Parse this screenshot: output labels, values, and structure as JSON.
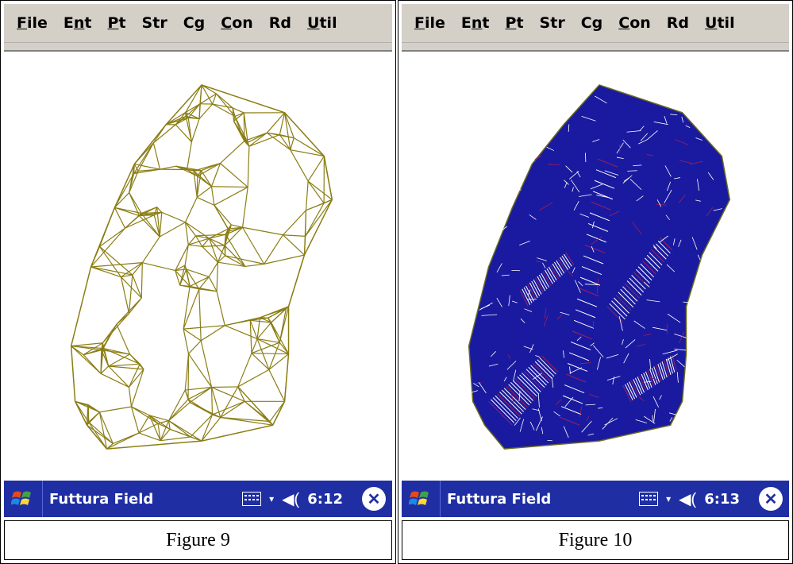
{
  "panels": [
    {
      "menu": [
        {
          "pre": "",
          "ul": "F",
          "post": "ile"
        },
        {
          "pre": "E",
          "ul": "n",
          "post": "t"
        },
        {
          "pre": "",
          "ul": "P",
          "post": "t"
        },
        {
          "pre": "Str",
          "ul": "",
          "post": ""
        },
        {
          "pre": "C",
          "ul": "g",
          "post": ""
        },
        {
          "pre": "",
          "ul": "C",
          "post": "on"
        },
        {
          "pre": "Rd",
          "ul": "",
          "post": ""
        },
        {
          "pre": "",
          "ul": "U",
          "post": "til"
        }
      ],
      "app_title": "Futtura Field",
      "clock": "6:12",
      "caption": "Figure 9",
      "mesh_color": "#8a7d14",
      "icons": {
        "start": "windows-start-icon",
        "keyboard": "keyboard-icon",
        "volume": "speaker-icon",
        "close": "close-icon"
      }
    },
    {
      "menu": [
        {
          "pre": "",
          "ul": "F",
          "post": "ile"
        },
        {
          "pre": "E",
          "ul": "n",
          "post": "t"
        },
        {
          "pre": "",
          "ul": "P",
          "post": "t"
        },
        {
          "pre": "Str",
          "ul": "",
          "post": ""
        },
        {
          "pre": "C",
          "ul": "g",
          "post": ""
        },
        {
          "pre": "",
          "ul": "C",
          "post": "on"
        },
        {
          "pre": "Rd",
          "ul": "",
          "post": ""
        },
        {
          "pre": "",
          "ul": "U",
          "post": "til"
        }
      ],
      "app_title": "Futtura Field",
      "clock": "6:13",
      "caption": "Figure 10",
      "mesh_color": "#1a1aa0",
      "hatch_color": "#ffffff",
      "accent_color": "#a0205a",
      "icons": {
        "start": "windows-start-icon",
        "keyboard": "keyboard-icon",
        "volume": "speaker-icon",
        "close": "close-icon"
      }
    }
  ]
}
